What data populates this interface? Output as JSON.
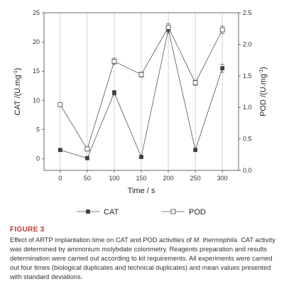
{
  "chart_data": {
    "type": "line",
    "x": [
      0,
      50,
      100,
      150,
      200,
      250,
      300
    ],
    "xlabel": "Time / s",
    "xlim": [
      -30,
      330
    ],
    "series": [
      {
        "name": "CAT",
        "axis": "left",
        "marker": "filled-square",
        "values": [
          1.5,
          0.1,
          11.3,
          0.3,
          22.1,
          1.5,
          15.5
        ],
        "errors": [
          0.0,
          0.0,
          0.4,
          0.0,
          0.6,
          0.0,
          0.7
        ]
      },
      {
        "name": "POD",
        "axis": "right",
        "marker": "open-square",
        "values": [
          1.04,
          0.34,
          1.73,
          1.52,
          2.27,
          1.39,
          2.23
        ],
        "errors": [
          0.03,
          0.03,
          0.05,
          0.04,
          0.06,
          0.04,
          0.06
        ]
      }
    ],
    "y_left": {
      "label": "CAT /(U.mg",
      "label_sup": "-1",
      "label_end": ")",
      "range": [
        -2,
        25
      ],
      "ticks": [
        "0",
        "5",
        "10",
        "15",
        "20",
        "25"
      ]
    },
    "y_right": {
      "label": "POD /(U.mg",
      "label_sup": "-1",
      "label_end": ")",
      "range": [
        0,
        2.5
      ],
      "ticks": [
        "0.0",
        "0.5",
        "1.0",
        "1.5",
        "2.0",
        "2.5"
      ]
    },
    "x_ticks": [
      "0",
      "50",
      "100",
      "150",
      "200",
      "250",
      "300"
    ],
    "grid": "vertical",
    "legend_position": "bottom"
  },
  "caption": {
    "label": "FIGURE 3",
    "text_before_italic": "Effect of ARTP implantation time on CAT and POD activities of ",
    "italic": "M. thermophila",
    "text_after_italic": ". CAT activity was determined by ammonium molybdate colorimetry. Reagents preparation and results determination were carried out according to kit requirements. All experiments were carried out four times (biological duplicates and technical duplicates) and mean values presented with standard deviations."
  }
}
